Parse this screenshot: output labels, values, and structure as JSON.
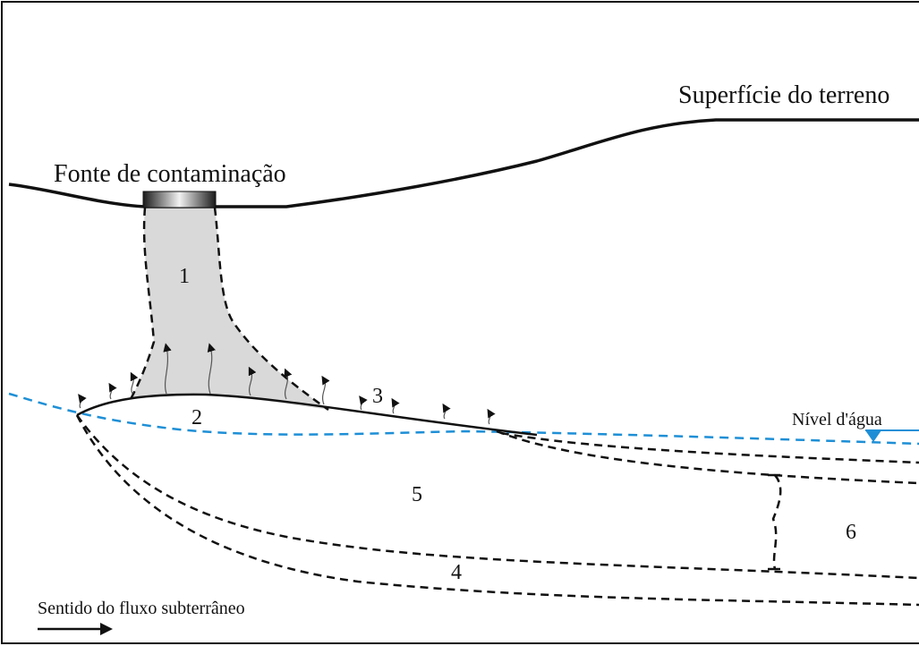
{
  "labels": {
    "surface": "Superfície do terreno",
    "source": "Fonte de contaminação",
    "water_level": "Nível d'água",
    "flow_direction": "Sentido do fluxo subterrâneo"
  },
  "zones": {
    "z1": "1",
    "z2": "2",
    "z3": "3",
    "z4": "4",
    "z5": "5",
    "z6": "6"
  },
  "colors": {
    "line": "#111111",
    "plume_fill": "#d9d9d9",
    "water_table": "#1e8fd6"
  }
}
